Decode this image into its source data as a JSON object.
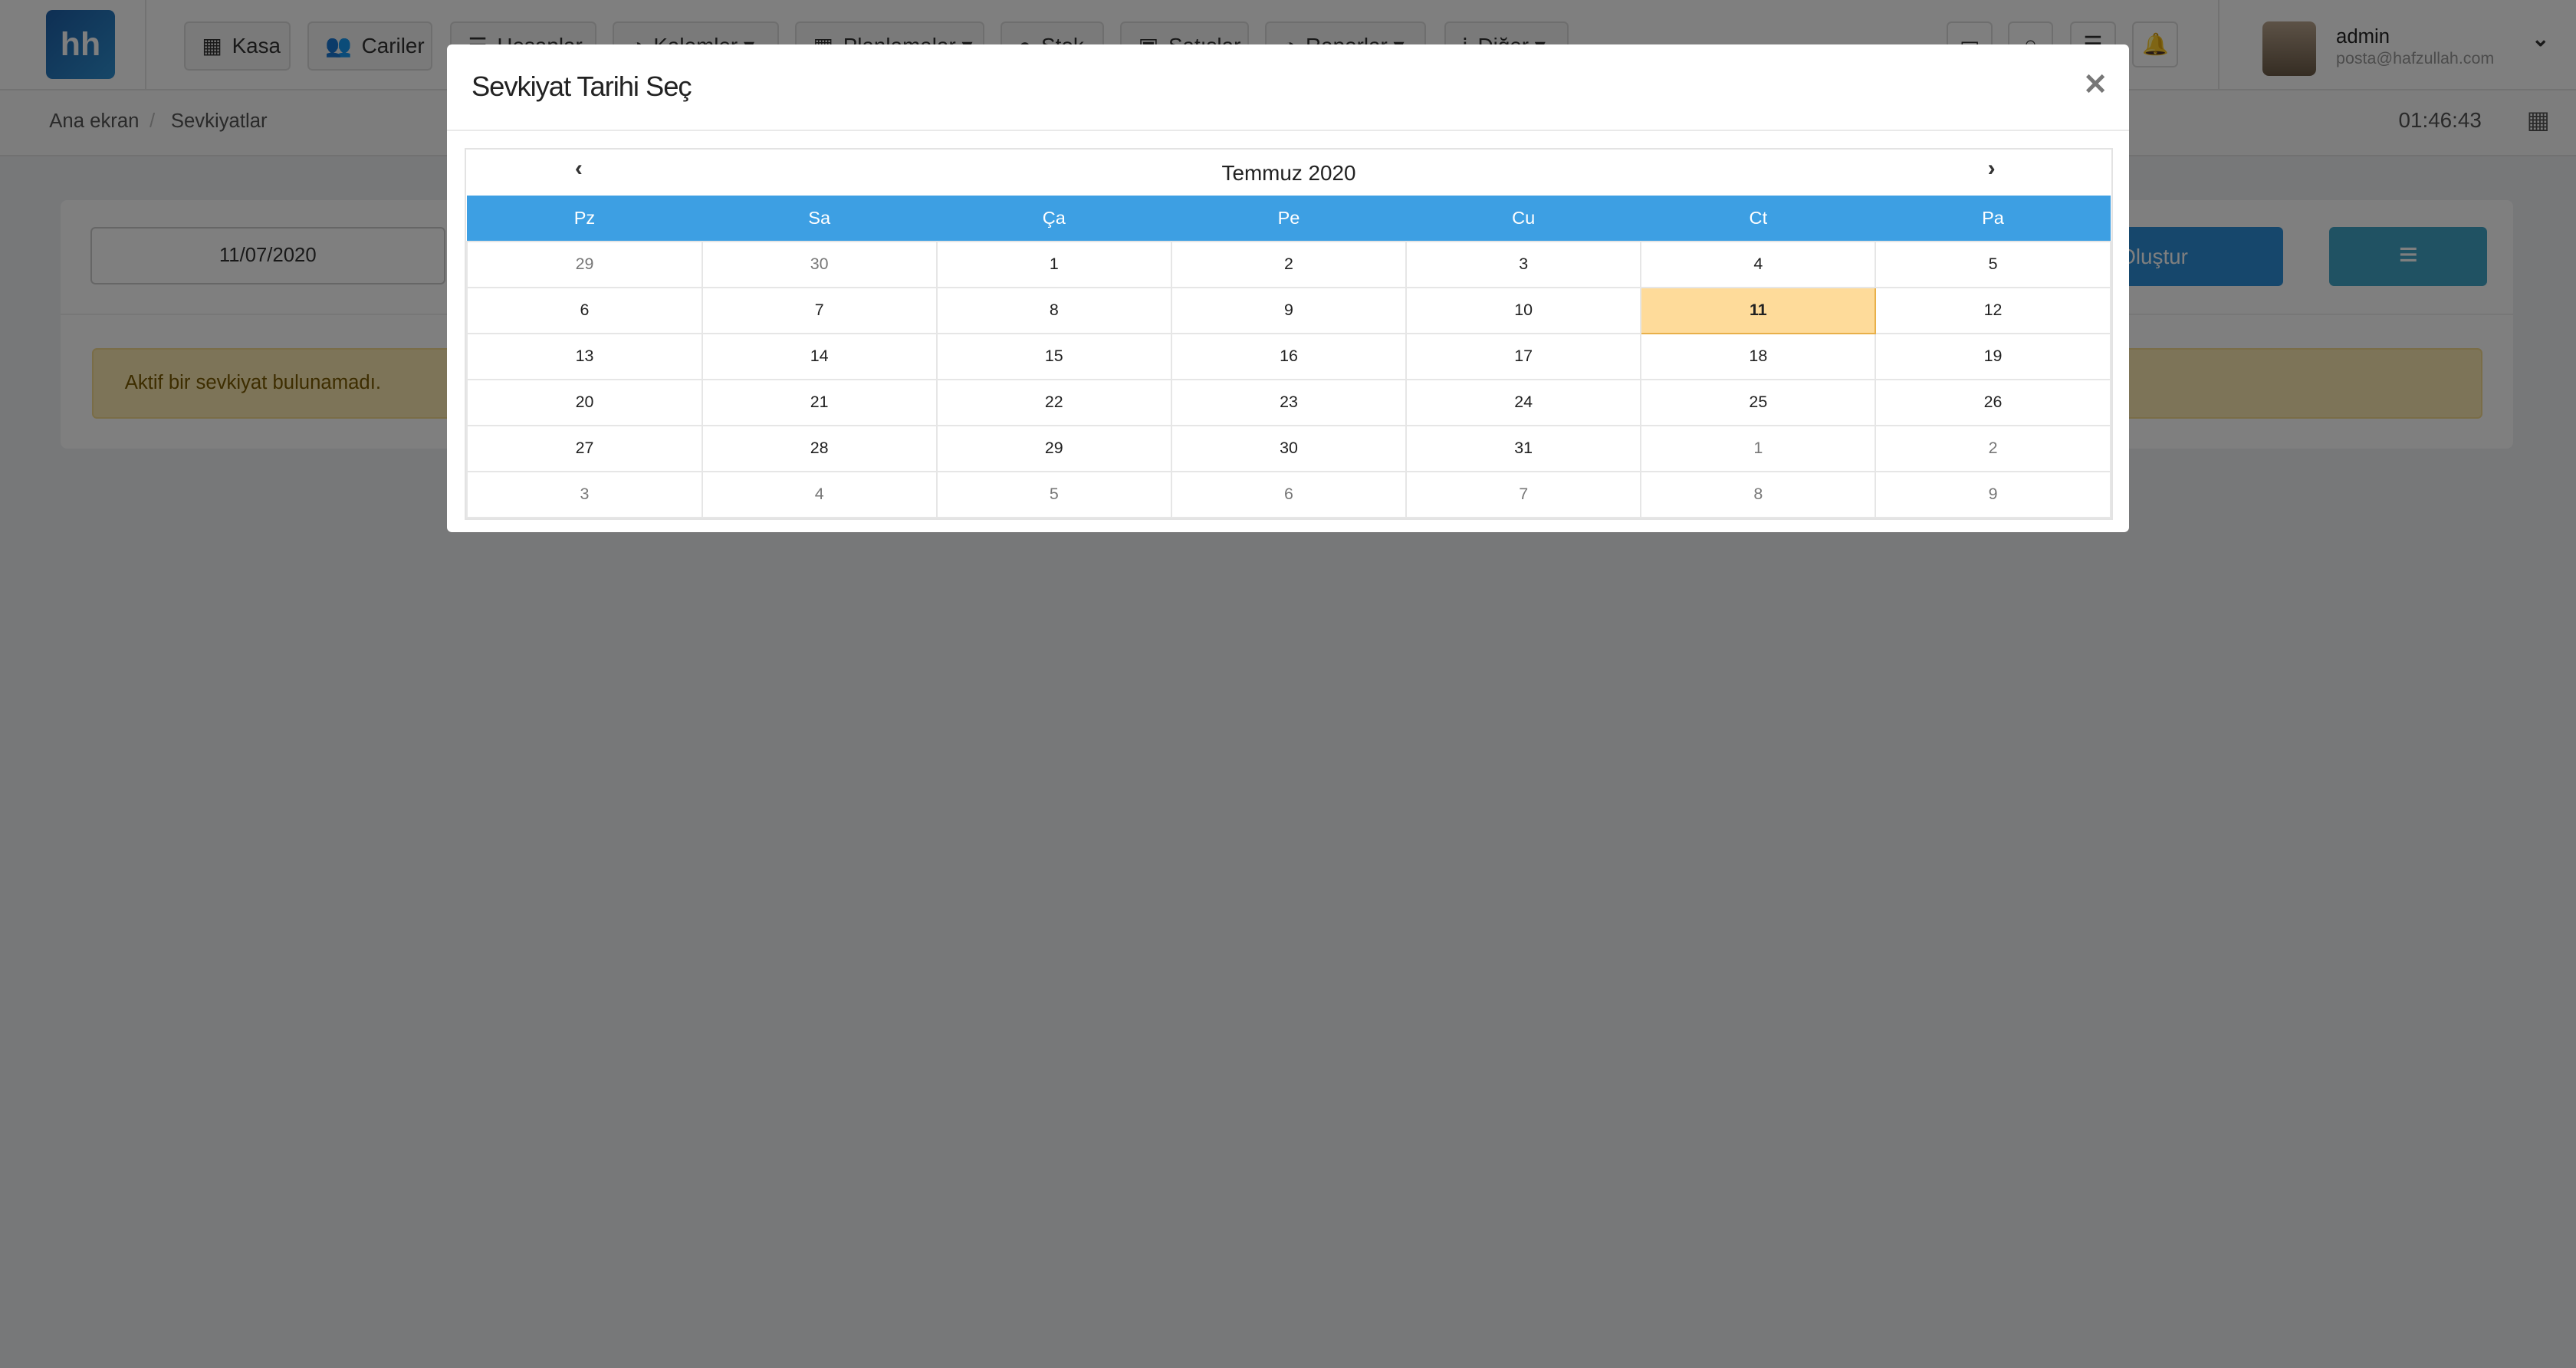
{
  "nav": {
    "logo": "hh",
    "items": [
      {
        "label": "Kasa",
        "icon": "cash-register-icon",
        "glyph": "▦"
      },
      {
        "label": "Cariler",
        "icon": "users-icon",
        "glyph": "👥"
      },
      {
        "label": "Hesaplar",
        "icon": "list-icon",
        "glyph": "☰"
      },
      {
        "label": "Kalemler ▾",
        "icon": "chart-icon",
        "glyph": "◕"
      },
      {
        "label": "Planlamalar ▾",
        "icon": "calendar-icon",
        "glyph": "▦"
      },
      {
        "label": "Stok",
        "icon": "database-icon",
        "glyph": "●"
      },
      {
        "label": "Satışlar",
        "icon": "gift-icon",
        "glyph": "▣"
      },
      {
        "label": "Raporlar ▾",
        "icon": "pie-chart-icon",
        "glyph": "◕"
      },
      {
        "label": "Diğer ▾",
        "icon": "grid-icon",
        "glyph": "⁞"
      }
    ],
    "user": {
      "name": "admin",
      "email": "posta@hafzullah.com"
    }
  },
  "breadcrumb": [
    "Ana ekran",
    "Sevkiyatlar"
  ],
  "clock": "01:46:43",
  "card": {
    "date_value": "11/07/2020",
    "create_label": "Oluştur",
    "alert": "Aktif bir sevkiyat bulunamadı."
  },
  "modal": {
    "title": "Sevkiyat Tarihi Seç",
    "month": "Temmuz 2020",
    "weekdays": [
      "Pz",
      "Sa",
      "Ça",
      "Pe",
      "Cu",
      "Ct",
      "Pa"
    ],
    "selected": "11",
    "weeks": [
      [
        "29",
        "30",
        "1",
        "2",
        "3",
        "4",
        "5"
      ],
      [
        "6",
        "7",
        "8",
        "9",
        "10",
        "11",
        "12"
      ],
      [
        "13",
        "14",
        "15",
        "16",
        "17",
        "18",
        "19"
      ],
      [
        "20",
        "21",
        "22",
        "23",
        "24",
        "25",
        "26"
      ],
      [
        "27",
        "28",
        "29",
        "30",
        "31",
        "1",
        "2"
      ],
      [
        "3",
        "4",
        "5",
        "6",
        "7",
        "8",
        "9"
      ]
    ]
  },
  "colors": {
    "accent": "#3d9fe3",
    "selected": "#fedb9a",
    "alert": "#fbe8b0"
  }
}
